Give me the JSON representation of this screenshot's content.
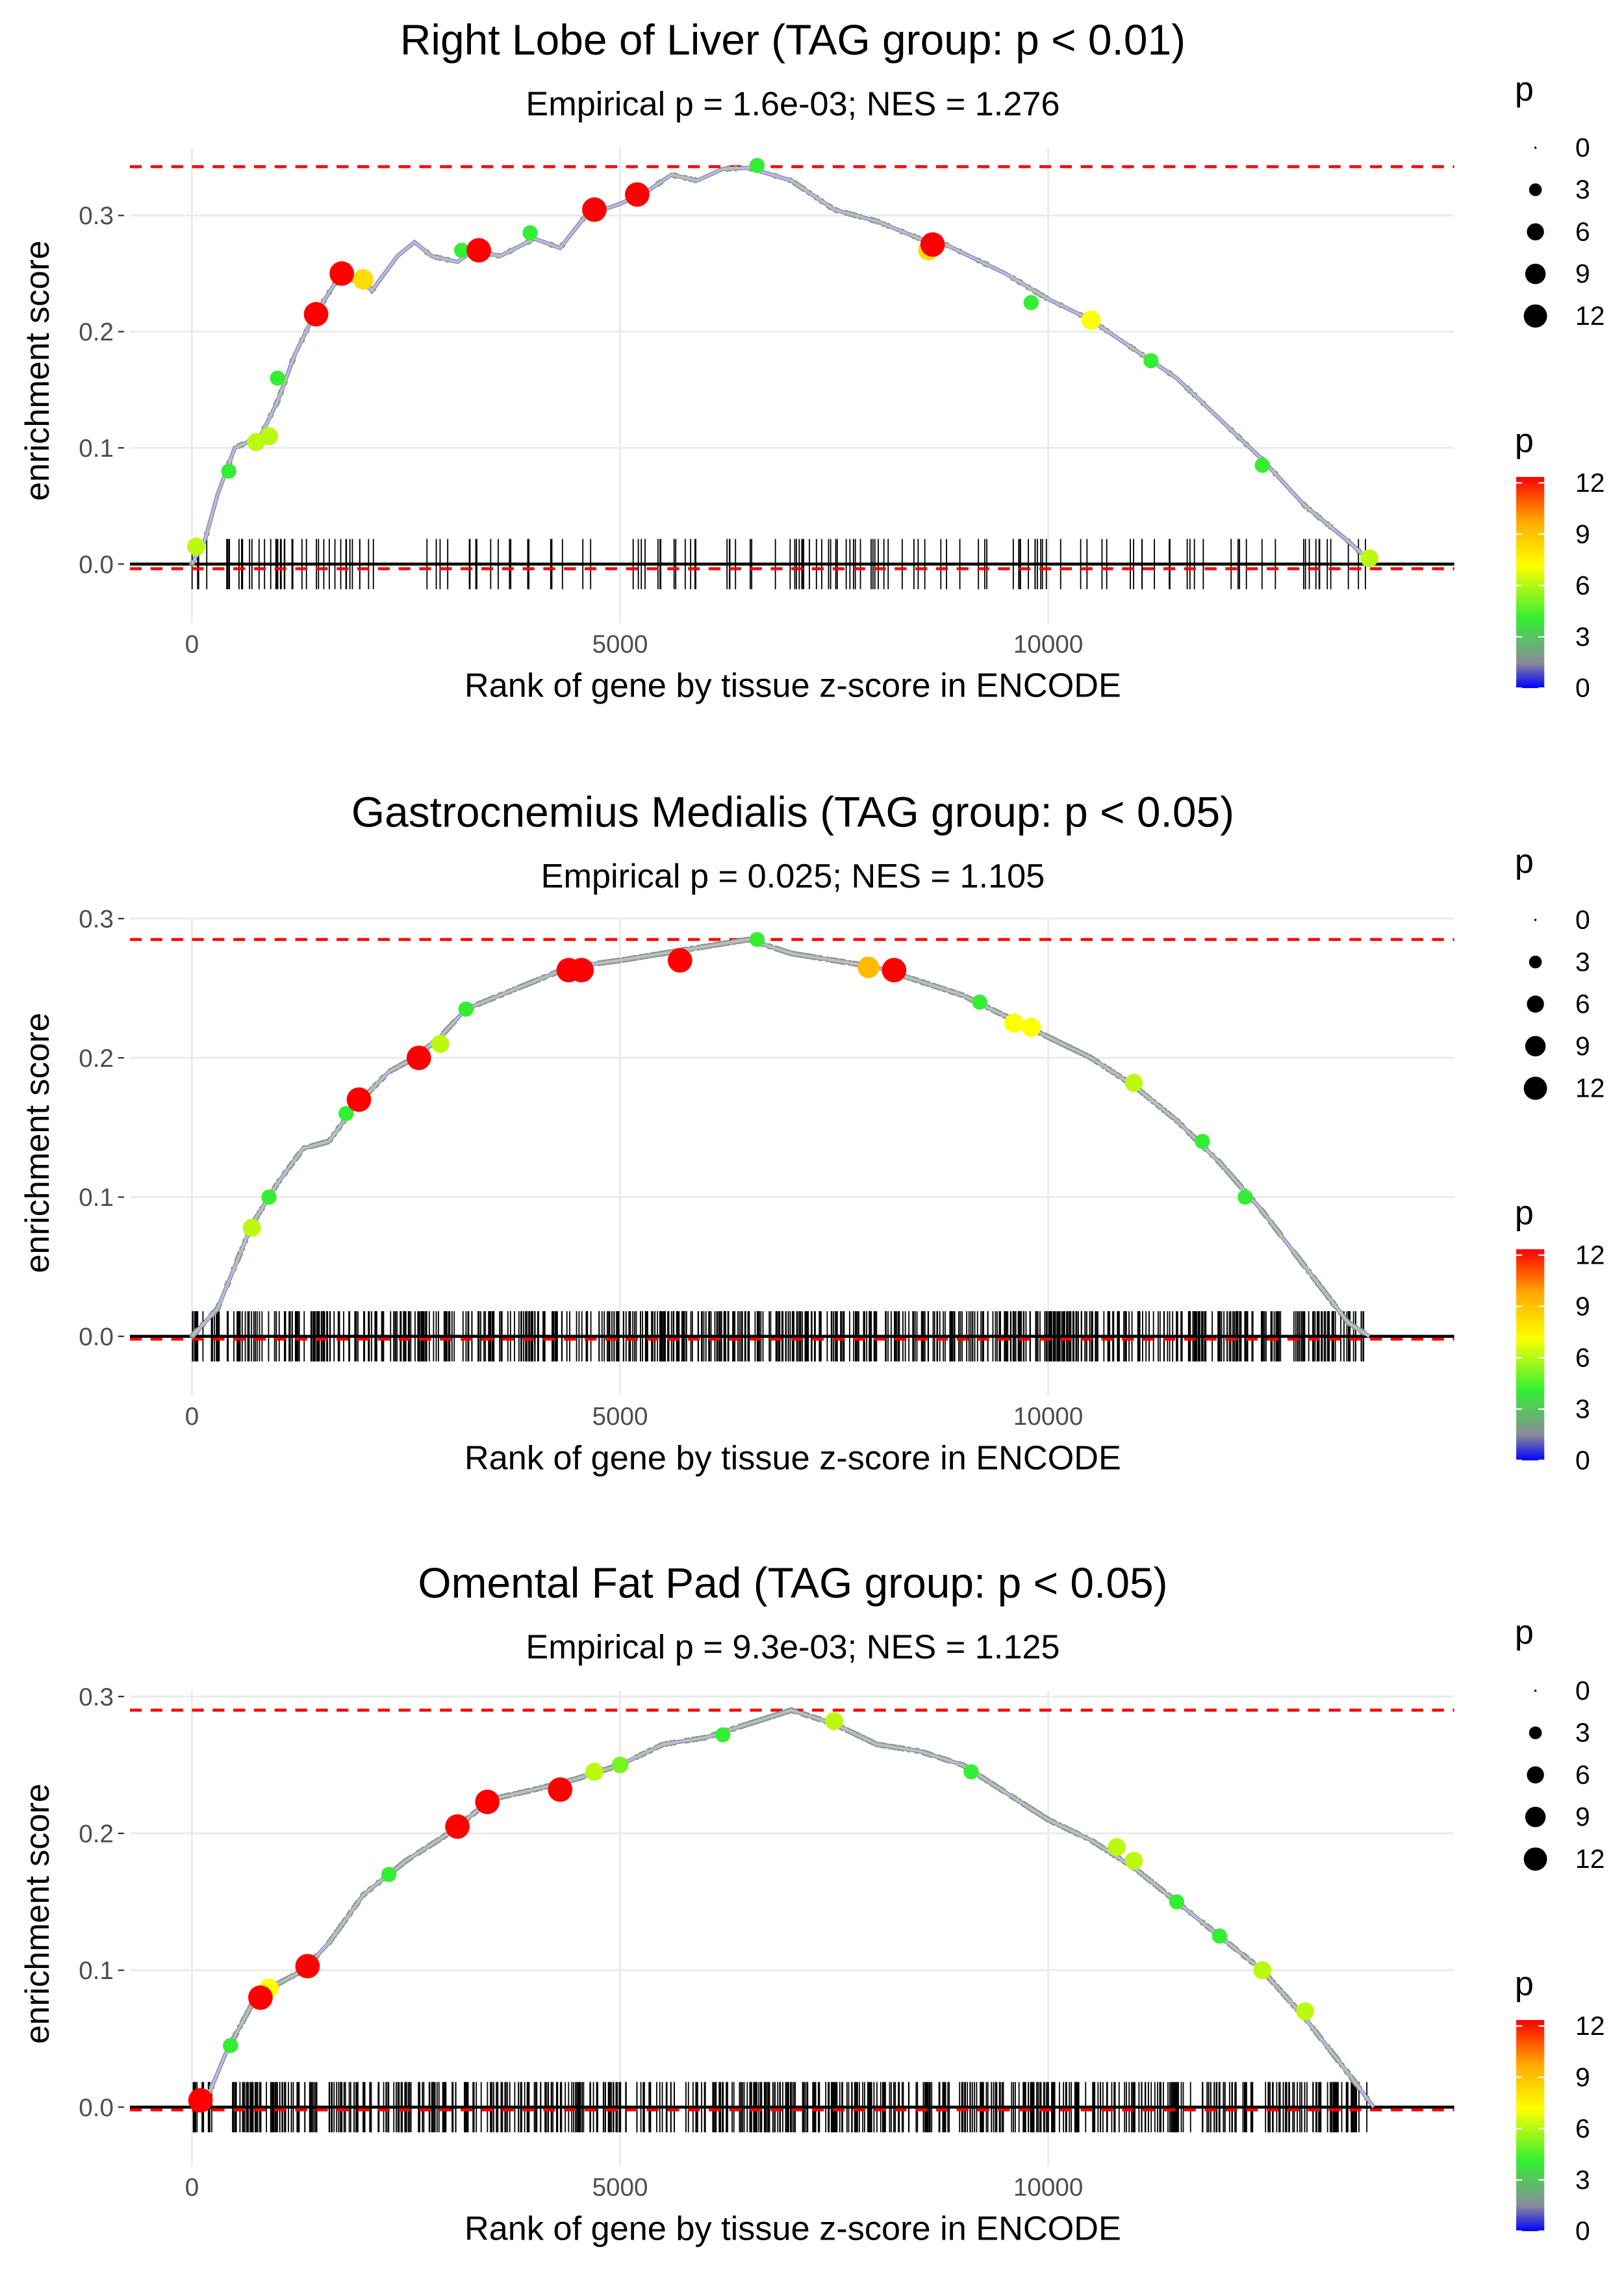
{
  "legend": {
    "size_title": "p",
    "size_labels": [
      "0",
      "3",
      "6",
      "9",
      "12"
    ],
    "size_values": [
      0,
      3,
      6,
      9,
      12
    ],
    "color_title": "p",
    "color_labels": [
      "12",
      "9",
      "6",
      "3",
      "0"
    ],
    "color_values": [
      12,
      9,
      6,
      3,
      0
    ],
    "colors": {
      "p0": "#0000ff",
      "p1_5": "#8a8a9a",
      "p4": "#33ee33",
      "p7": "#ffff00",
      "p9_5": "#ffaa00",
      "p12": "#ff0000"
    }
  },
  "chart_data": [
    {
      "type": "line",
      "title": "Right Lobe of Liver (TAG group: p < 0.01)",
      "subtitle": "Empirical p = 1.6e-03; NES = 1.276",
      "xlabel": "Rank of gene by tissue z-score in ENCODE",
      "ylabel": "enrichment score",
      "xticks": [
        0,
        5000,
        10000
      ],
      "xtick_labels": [
        "0",
        "5000",
        "10000"
      ],
      "yticks": [
        0,
        0.1,
        0.2,
        0.3
      ],
      "ytick_labels": [
        "0.0",
        "0.1",
        "0.2",
        "0.3"
      ],
      "max_es": 0.342,
      "min_es": -0.004,
      "rug_count": 160,
      "curve": [
        [
          0,
          0
        ],
        [
          150,
          0.02
        ],
        [
          300,
          0.06
        ],
        [
          500,
          0.1
        ],
        [
          800,
          0.11
        ],
        [
          1000,
          0.14
        ],
        [
          1200,
          0.18
        ],
        [
          1400,
          0.21
        ],
        [
          1700,
          0.245
        ],
        [
          2000,
          0.245
        ],
        [
          2100,
          0.235
        ],
        [
          2400,
          0.265
        ],
        [
          2600,
          0.277
        ],
        [
          2800,
          0.265
        ],
        [
          3100,
          0.26
        ],
        [
          3300,
          0.27
        ],
        [
          3600,
          0.265
        ],
        [
          4000,
          0.28
        ],
        [
          4300,
          0.272
        ],
        [
          4600,
          0.3
        ],
        [
          5000,
          0.31
        ],
        [
          5300,
          0.32
        ],
        [
          5600,
          0.335
        ],
        [
          5900,
          0.33
        ],
        [
          6200,
          0.34
        ],
        [
          6500,
          0.341
        ],
        [
          7000,
          0.33
        ],
        [
          7500,
          0.305
        ],
        [
          8000,
          0.295
        ],
        [
          8500,
          0.28
        ],
        [
          8800,
          0.275
        ],
        [
          9500,
          0.25
        ],
        [
          10000,
          0.228
        ],
        [
          10500,
          0.21
        ],
        [
          11000,
          0.185
        ],
        [
          11500,
          0.16
        ],
        [
          12000,
          0.125
        ],
        [
          12500,
          0.09
        ],
        [
          13000,
          0.05
        ],
        [
          13500,
          0.02
        ],
        [
          13750,
          0.003
        ]
      ],
      "points": [
        [
          1450,
          0.215,
          12
        ],
        [
          1750,
          0.25,
          12
        ],
        [
          3350,
          0.27,
          12
        ],
        [
          4700,
          0.305,
          12
        ],
        [
          5200,
          0.318,
          12
        ],
        [
          8650,
          0.275,
          12
        ],
        [
          2000,
          0.245,
          8
        ],
        [
          8600,
          0.27,
          8
        ],
        [
          10500,
          0.21,
          7
        ],
        [
          750,
          0.105,
          6
        ],
        [
          900,
          0.11,
          6
        ],
        [
          13750,
          0.005,
          6
        ],
        [
          50,
          0.015,
          6
        ],
        [
          430,
          0.08,
          4
        ],
        [
          1000,
          0.16,
          4
        ],
        [
          3150,
          0.27,
          4
        ],
        [
          3950,
          0.285,
          4
        ],
        [
          6600,
          0.343,
          4
        ],
        [
          9800,
          0.225,
          4
        ],
        [
          11200,
          0.175,
          4
        ],
        [
          12500,
          0.085,
          4
        ]
      ]
    },
    {
      "type": "line",
      "title": "Gastrocnemius Medialis (TAG group: p < 0.05)",
      "subtitle": "Empirical p = 0.025; NES = 1.105",
      "xlabel": "Rank of gene by tissue z-score in ENCODE",
      "ylabel": "enrichment score",
      "xticks": [
        0,
        5000,
        10000
      ],
      "xtick_labels": [
        "0",
        "5000",
        "10000"
      ],
      "yticks": [
        0,
        0.1,
        0.2,
        0.3
      ],
      "ytick_labels": [
        "0.0",
        "0.1",
        "0.2",
        "0.3"
      ],
      "max_es": 0.285,
      "min_es": -0.002,
      "rug_count": 700,
      "curve": [
        [
          0,
          0
        ],
        [
          300,
          0.02
        ],
        [
          700,
          0.08
        ],
        [
          1000,
          0.11
        ],
        [
          1300,
          0.135
        ],
        [
          1600,
          0.14
        ],
        [
          1900,
          0.165
        ],
        [
          2300,
          0.19
        ],
        [
          2600,
          0.2
        ],
        [
          2900,
          0.215
        ],
        [
          3200,
          0.235
        ],
        [
          3600,
          0.245
        ],
        [
          4000,
          0.255
        ],
        [
          4400,
          0.265
        ],
        [
          5000,
          0.27
        ],
        [
          5500,
          0.275
        ],
        [
          6000,
          0.28
        ],
        [
          6500,
          0.285
        ],
        [
          7000,
          0.275
        ],
        [
          7500,
          0.27
        ],
        [
          8000,
          0.265
        ],
        [
          8500,
          0.255
        ],
        [
          9000,
          0.245
        ],
        [
          9500,
          0.23
        ],
        [
          10000,
          0.215
        ],
        [
          10500,
          0.2
        ],
        [
          11000,
          0.18
        ],
        [
          11500,
          0.155
        ],
        [
          12000,
          0.125
        ],
        [
          12500,
          0.09
        ],
        [
          13000,
          0.05
        ],
        [
          13500,
          0.01
        ],
        [
          13750,
          0.0
        ]
      ],
      "points": [
        [
          1950,
          0.17,
          12
        ],
        [
          2650,
          0.2,
          12
        ],
        [
          4400,
          0.263,
          12
        ],
        [
          4550,
          0.263,
          12
        ],
        [
          5700,
          0.27,
          12
        ],
        [
          8200,
          0.263,
          12
        ],
        [
          7900,
          0.265,
          9
        ],
        [
          700,
          0.078,
          6
        ],
        [
          2900,
          0.21,
          6
        ],
        [
          9600,
          0.225,
          7
        ],
        [
          9800,
          0.222,
          7
        ],
        [
          11000,
          0.182,
          6
        ],
        [
          900,
          0.1,
          4
        ],
        [
          1800,
          0.16,
          4
        ],
        [
          3200,
          0.235,
          4
        ],
        [
          6600,
          0.285,
          4
        ],
        [
          9200,
          0.24,
          4
        ],
        [
          11800,
          0.14,
          4
        ],
        [
          12300,
          0.1,
          4
        ]
      ]
    },
    {
      "type": "line",
      "title": "Omental Fat Pad (TAG group: p < 0.05)",
      "subtitle": "Empirical p = 9.3e-03; NES = 1.125",
      "xlabel": "Rank of gene by tissue z-score in ENCODE",
      "ylabel": "enrichment score",
      "xticks": [
        0,
        5000,
        10000
      ],
      "xtick_labels": [
        "0",
        "5000",
        "10000"
      ],
      "yticks": [
        0,
        0.1,
        0.2,
        0.3
      ],
      "ytick_labels": [
        "0.0",
        "0.1",
        "0.2",
        "0.3"
      ],
      "max_es": 0.29,
      "min_es": -0.002,
      "rug_count": 650,
      "curve": [
        [
          0,
          0
        ],
        [
          200,
          0.01
        ],
        [
          400,
          0.04
        ],
        [
          700,
          0.075
        ],
        [
          1000,
          0.09
        ],
        [
          1300,
          0.1
        ],
        [
          1600,
          0.12
        ],
        [
          2000,
          0.155
        ],
        [
          2500,
          0.18
        ],
        [
          3000,
          0.2
        ],
        [
          3500,
          0.225
        ],
        [
          4000,
          0.232
        ],
        [
          4500,
          0.24
        ],
        [
          5000,
          0.25
        ],
        [
          5500,
          0.265
        ],
        [
          6000,
          0.27
        ],
        [
          6500,
          0.28
        ],
        [
          7000,
          0.29
        ],
        [
          7500,
          0.28
        ],
        [
          8000,
          0.265
        ],
        [
          8500,
          0.26
        ],
        [
          9000,
          0.25
        ],
        [
          9500,
          0.23
        ],
        [
          10000,
          0.21
        ],
        [
          10500,
          0.195
        ],
        [
          11000,
          0.175
        ],
        [
          11500,
          0.15
        ],
        [
          12000,
          0.125
        ],
        [
          12500,
          0.1
        ],
        [
          13000,
          0.065
        ],
        [
          13500,
          0.025
        ],
        [
          13800,
          0.0
        ]
      ],
      "points": [
        [
          100,
          0.005,
          12
        ],
        [
          800,
          0.08,
          12
        ],
        [
          1350,
          0.103,
          12
        ],
        [
          3100,
          0.205,
          12
        ],
        [
          3450,
          0.223,
          12
        ],
        [
          4300,
          0.232,
          12
        ],
        [
          900,
          0.087,
          7
        ],
        [
          4700,
          0.245,
          6
        ],
        [
          7500,
          0.282,
          6
        ],
        [
          10800,
          0.19,
          6
        ],
        [
          11000,
          0.18,
          6
        ],
        [
          12500,
          0.1,
          6
        ],
        [
          13000,
          0.07,
          6
        ],
        [
          5000,
          0.25,
          5
        ],
        [
          450,
          0.045,
          4
        ],
        [
          2300,
          0.17,
          4
        ],
        [
          6200,
          0.272,
          4
        ],
        [
          9100,
          0.245,
          4
        ],
        [
          11500,
          0.15,
          4
        ],
        [
          12000,
          0.125,
          4
        ]
      ]
    }
  ]
}
